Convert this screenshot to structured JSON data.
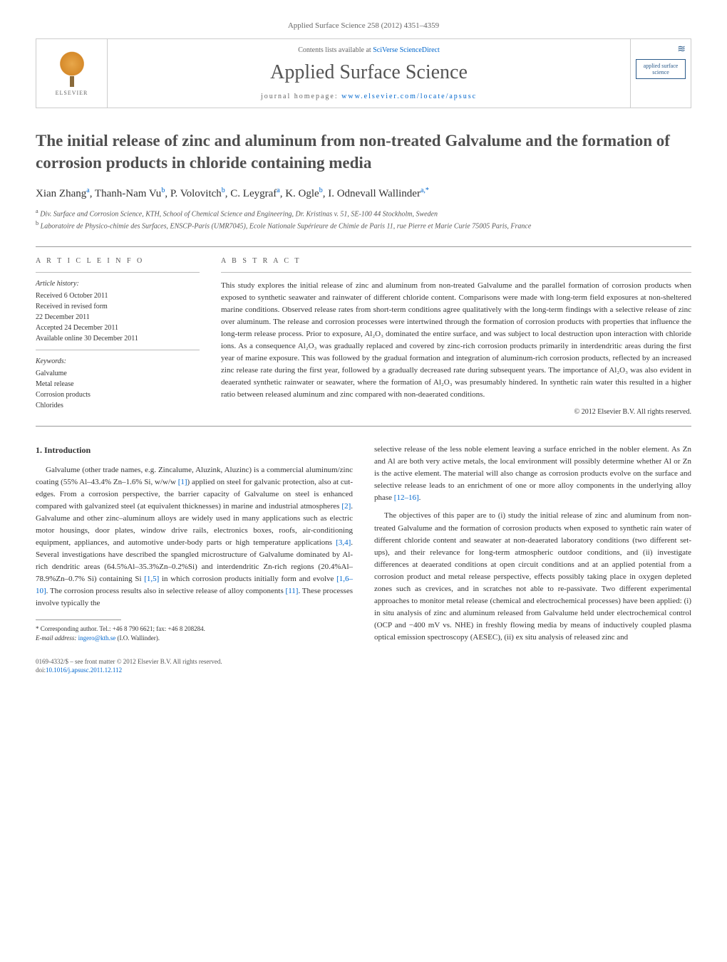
{
  "journal_header": "Applied Surface Science 258 (2012) 4351–4359",
  "header": {
    "elsevier": "ELSEVIER",
    "contents_prefix": "Contents lists available at ",
    "contents_link": "SciVerse ScienceDirect",
    "journal_title": "Applied Surface Science",
    "homepage_prefix": "journal homepage: ",
    "homepage_link": "www.elsevier.com/locate/apsusc",
    "cover_label": "applied surface science"
  },
  "title": "The initial release of zinc and aluminum from non-treated Galvalume and the formation of corrosion products in chloride containing media",
  "authors_html": "Xian Zhang<sup>a</sup>, Thanh-Nam Vu<sup>b</sup>, P. Volovitch<sup>b</sup>, C. Leygraf<sup>a</sup>, K. Ogle<sup>b</sup>, I. Odnevall Wallinder<sup>a,*</sup>",
  "affiliations": {
    "a": "Div. Surface and Corrosion Science, KTH, School of Chemical Science and Engineering, Dr. Kristinas v. 51, SE-100 44 Stockholm, Sweden",
    "b": "Laboratoire de Physico-chimie des Surfaces, ENSCP-Paris (UMR7045), Ecole Nationale Supérieure de Chimie de Paris 11, rue Pierre et Marie Curie 75005 Paris, France"
  },
  "article_info": {
    "heading": "A R T I C L E   I N F O",
    "history_label": "Article history:",
    "history": [
      "Received 6 October 2011",
      "Received in revised form",
      "22 December 2011",
      "Accepted 24 December 2011",
      "Available online 30 December 2011"
    ],
    "keywords_label": "Keywords:",
    "keywords": [
      "Galvalume",
      "Metal release",
      "Corrosion products",
      "Chlorides"
    ]
  },
  "abstract": {
    "heading": "A B S T R A C T",
    "text": "This study explores the initial release of zinc and aluminum from non-treated Galvalume and the parallel formation of corrosion products when exposed to synthetic seawater and rainwater of different chloride content. Comparisons were made with long-term field exposures at non-sheltered marine conditions. Observed release rates from short-term conditions agree qualitatively with the long-term findings with a selective release of zinc over aluminum. The release and corrosion processes were intertwined through the formation of corrosion products with properties that influence the long-term release process. Prior to exposure, Al₂O₃ dominated the entire surface, and was subject to local destruction upon interaction with chloride ions. As a consequence Al₂O₃ was gradually replaced and covered by zinc-rich corrosion products primarily in interdendritic areas during the first year of marine exposure. This was followed by the gradual formation and integration of aluminum-rich corrosion products, reflected by an increased zinc release rate during the first year, followed by a gradually decreased rate during subsequent years. The importance of Al₂O₃ was also evident in deaerated synthetic rainwater or seawater, where the formation of Al₂O₃ was presumably hindered. In synthetic rain water this resulted in a higher ratio between released aluminum and zinc compared with non-deaerated conditions.",
    "copyright": "© 2012 Elsevier B.V. All rights reserved."
  },
  "intro": {
    "heading": "1. Introduction",
    "p1_pre": "Galvalume (other trade names, e.g. Zincalume, Aluzink, Aluzinc) is a commercial aluminum/zinc coating (55% Al–43.4% Zn–1.6% Si, w/w/w ",
    "r1": "[1]",
    "p1_a": ") applied on steel for galvanic protection, also at cut-edges. From a corrosion perspective, the barrier capacity of Galvalume on steel is enhanced compared with galvanized steel (at equivalent thicknesses) in marine and industrial atmospheres ",
    "r2": "[2]",
    "p1_b": ". Galvalume and other zinc–aluminum alloys are widely used in many applications such as electric motor housings, door plates, window drive rails, electronics boxes, roofs, air-conditioning equipment, appliances, and automotive under-body parts or high temperature applications ",
    "r3": "[3,4]",
    "p1_c": ". Several investigations have described the spangled microstructure of Galvalume dominated by Al-rich dendritic areas (64.5%Al–35.3%Zn–0.2%Si) and interdendritic Zn-rich regions (20.4%Al–78.9%Zn–0.7% Si) containing Si ",
    "r4": "[1,5]",
    "p1_d": " in which corrosion products initially form and evolve ",
    "r5": "[1,6–10]",
    "p1_e": ". The corrosion process results also in selective release of alloy components ",
    "r6": "[11]",
    "p1_f": ". These processes involve typically the",
    "p2_a": "selective release of the less noble element leaving a surface enriched in the nobler element. As Zn and Al are both very active metals, the local environment will possibly determine whether Al or Zn is the active element. The material will also change as corrosion products evolve on the surface and selective release leads to an enrichment of one or more alloy components in the underlying alloy phase ",
    "r7": "[12–16]",
    "p2_b": ".",
    "p3": "The objectives of this paper are to (i) study the initial release of zinc and aluminum from non-treated Galvalume and the formation of corrosion products when exposed to synthetic rain water of different chloride content and seawater at non-deaerated laboratory conditions (two different set-ups), and their relevance for long-term atmospheric outdoor conditions, and (ii) investigate differences at deaerated conditions at open circuit conditions and at an applied potential from a corrosion product and metal release perspective, effects possibly taking place in oxygen depleted zones such as crevices, and in scratches not able to re-passivate. Two different experimental approaches to monitor metal release (chemical and electrochemical processes) have been applied: (i) in situ analysis of zinc and aluminum released from Galvalume held under electrochemical control (OCP and −400 mV vs. NHE) in freshly flowing media by means of inductively coupled plasma optical emission spectroscopy (AESEC), (ii) ex situ analysis of released zinc and"
  },
  "footnote": {
    "corresponding": "* Corresponding author. Tel.: +46 8 790 6621; fax: +46 8 208284.",
    "email_label": "E-mail address: ",
    "email": "ingero@kth.se",
    "email_suffix": " (I.O. Wallinder)."
  },
  "bottom": {
    "issn": "0169-4332/$ – see front matter © 2012 Elsevier B.V. All rights reserved.",
    "doi_label": "doi:",
    "doi": "10.1016/j.apsusc.2011.12.112"
  },
  "colors": {
    "link": "#0066cc",
    "text": "#333333",
    "muted": "#666666",
    "border": "#cccccc"
  }
}
